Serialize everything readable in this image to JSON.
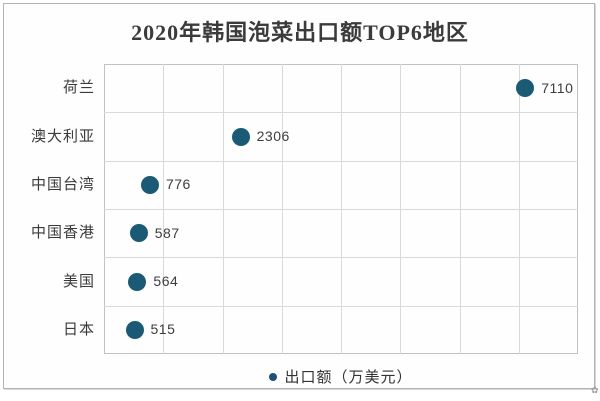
{
  "title": "2020年韩国泡菜出口额TOP6地区",
  "legend": {
    "label": "出口额（万美元）",
    "marker_color": "#1F4E79"
  },
  "chart_data": {
    "type": "scatter",
    "orientation": "horizontal",
    "title": "2020年韩国泡菜出口额TOP6地区",
    "categories": [
      "荷兰",
      "澳大利亚",
      "中国台湾",
      "中国香港",
      "美国",
      "日本"
    ],
    "values": [
      7110,
      2306,
      776,
      587,
      564,
      515
    ],
    "value_labels": [
      "7110",
      "2306",
      "776",
      "587",
      "564",
      "515"
    ],
    "legend": "出口额（万美元）",
    "xlim": [
      0,
      8000
    ],
    "x_gridline_interval": 1000,
    "grid": true,
    "legend_position": "bottom",
    "marker_color": "#1A5A74",
    "legend_marker_color": "#1F4E79",
    "gridline_color": "#d9d9d9",
    "plot_border_color": "#c2c2c2"
  }
}
